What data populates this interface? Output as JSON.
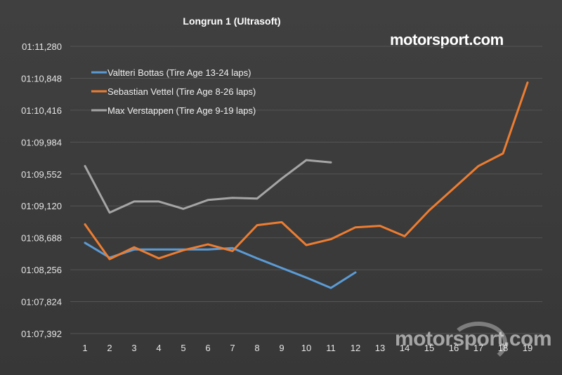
{
  "branding": {
    "logo_main": "motorsport",
    "logo_suffix": ".com",
    "watermark": "motorsport.com"
  },
  "chart_data": {
    "type": "line",
    "title": "Longrun 1 (Ultrasoft)",
    "xlabel": "",
    "ylabel": "",
    "x": [
      1,
      2,
      3,
      4,
      5,
      6,
      7,
      8,
      9,
      10,
      11,
      12,
      13,
      14,
      15,
      16,
      17,
      18,
      19
    ],
    "y_tick_labels": [
      "01:07,392",
      "01:07,824",
      "01:08,256",
      "01:08,688",
      "01:09,120",
      "01:09,552",
      "01:09,984",
      "01:10,416",
      "01:10,848",
      "01:11,280"
    ],
    "ylim_seconds": [
      67.392,
      71.28
    ],
    "grid": "horizontal",
    "legend_position": "top-left",
    "series": [
      {
        "name": "Valtteri Bottas (Tire Age 13-24 laps)",
        "color": "#5b9bd5",
        "x": [
          1,
          2,
          3,
          4,
          5,
          6,
          7,
          8,
          9,
          10,
          11,
          12
        ],
        "values_seconds": [
          68.62,
          68.42,
          68.53,
          68.53,
          68.53,
          68.53,
          68.55,
          68.41,
          68.28,
          68.15,
          68.01,
          68.22
        ]
      },
      {
        "name": "Sebastian Vettel (Tire Age 8-26 laps)",
        "color": "#ed7d31",
        "x": [
          1,
          2,
          3,
          4,
          5,
          6,
          7,
          8,
          9,
          10,
          11,
          12,
          13,
          14,
          15,
          16,
          17,
          18,
          19
        ],
        "values_seconds": [
          68.87,
          68.4,
          68.56,
          68.41,
          68.52,
          68.6,
          68.51,
          68.86,
          68.9,
          68.59,
          68.67,
          68.83,
          68.85,
          68.71,
          69.06,
          69.36,
          69.66,
          69.83,
          70.79
        ]
      },
      {
        "name": "Max Verstappen (Tire Age 9-19 laps)",
        "color": "#a5a5a5",
        "x": [
          1,
          2,
          3,
          4,
          5,
          6,
          7,
          8,
          9,
          10,
          11
        ],
        "values_seconds": [
          69.66,
          69.03,
          69.18,
          69.18,
          69.08,
          69.2,
          69.23,
          69.22,
          69.49,
          69.74,
          69.71
        ]
      }
    ]
  }
}
